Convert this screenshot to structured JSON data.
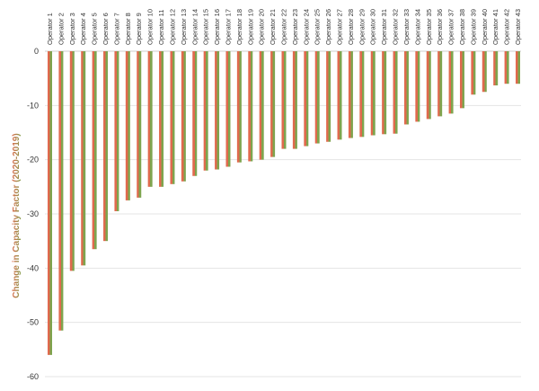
{
  "chart_data": {
    "type": "bar",
    "title": "",
    "xlabel": "",
    "ylabel": "Change in Capacity Factor (2020-2019)",
    "ylim": [
      -60,
      0
    ],
    "yticks": [
      0,
      -10,
      -20,
      -30,
      -40,
      -50,
      -60
    ],
    "grid": true,
    "legend": "none",
    "categories": [
      "Operator 1",
      "Operator 2",
      "Operator 3",
      "Operator 4",
      "Operator 5",
      "Operator 6",
      "Operator 7",
      "Operator 8",
      "Operator 9",
      "Operator 10",
      "Operator 11",
      "Operator 12",
      "Operator 13",
      "Operator 14",
      "Operator 15",
      "Operator 16",
      "Operator 17",
      "Operator 18",
      "Operator 19",
      "Operator 20",
      "Operator 21",
      "Operator 22",
      "Operator 23",
      "Operator 24",
      "Operator 25",
      "Operator 26",
      "Operator 27",
      "Operator 28",
      "Operator 29",
      "Operator 30",
      "Operator 31",
      "Operator 32",
      "Operator 33",
      "Operator 34",
      "Operator 35",
      "Operator 36",
      "Operator 37",
      "Operator 38",
      "Operator 39",
      "Operator 40",
      "Operator 41",
      "Operator 42",
      "Operator 43"
    ],
    "values": [
      -56.0,
      -51.5,
      -40.5,
      -39.5,
      -36.5,
      -35.0,
      -29.5,
      -27.5,
      -27.0,
      -25.0,
      -25.0,
      -24.5,
      -24.0,
      -23.0,
      -22.0,
      -21.8,
      -21.3,
      -20.5,
      -20.3,
      -20.0,
      -19.5,
      -18.0,
      -18.0,
      -17.5,
      -17.0,
      -16.7,
      -16.3,
      -16.0,
      -15.8,
      -15.5,
      -15.3,
      -15.2,
      -13.5,
      -13.0,
      -12.5,
      -12.0,
      -11.5,
      -10.5,
      -8.0,
      -7.5,
      -6.3,
      -6.0,
      -6.0
    ],
    "colors": {
      "bar_left": "#e06a4e",
      "bar_right": "#7ea44e",
      "ylabel_start": "#7ea44e",
      "ylabel_end": "#e06a4e",
      "grid": "#e4e4e4"
    }
  }
}
